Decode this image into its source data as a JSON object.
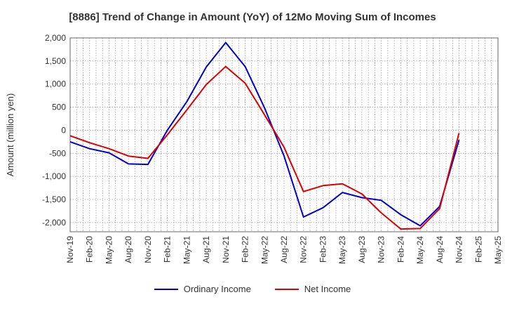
{
  "chart_data": {
    "type": "line",
    "title": "[8886]  Trend of Change in Amount (YoY) of 12Mo Moving Sum of Incomes",
    "xlabel": "",
    "ylabel": "Amount (million yen)",
    "ylim": [
      -2200,
      2000
    ],
    "yticks": [
      -2000,
      -1500,
      -1000,
      -500,
      0,
      500,
      1000,
      1500,
      2000
    ],
    "ytick_labels": [
      "-2,000",
      "-1,500",
      "-1,000",
      "-500",
      "0",
      "500",
      "1,000",
      "1,500",
      "2,000"
    ],
    "grid": true,
    "x_tick_labels": [
      "Nov-19",
      "Feb-20",
      "May-20",
      "Aug-20",
      "Nov-20",
      "Feb-21",
      "May-21",
      "Aug-21",
      "Nov-21",
      "Feb-22",
      "May-22",
      "Aug-22",
      "Nov-22",
      "Feb-23",
      "May-23",
      "Aug-23",
      "Nov-23",
      "Feb-24",
      "May-24",
      "Aug-24",
      "Nov-24",
      "Feb-25",
      "May-25"
    ],
    "series": [
      {
        "name": "Ordinary Income",
        "color": "#0000cc",
        "values": [
          -250,
          -400,
          -490,
          -730,
          -740,
          0,
          620,
          1370,
          1900,
          1380,
          480,
          -560,
          -1880,
          -1680,
          -1350,
          -1460,
          -1520,
          -1830,
          -2070,
          -1650,
          -210
        ]
      },
      {
        "name": "Net Income",
        "color": "#dd0000",
        "values": [
          -120,
          -270,
          -400,
          -560,
          -610,
          -100,
          440,
          990,
          1380,
          1020,
          330,
          -370,
          -1330,
          -1200,
          -1160,
          -1380,
          -1790,
          -2140,
          -2130,
          -1700,
          -60
        ]
      }
    ],
    "legend_position": "bottom-center"
  }
}
